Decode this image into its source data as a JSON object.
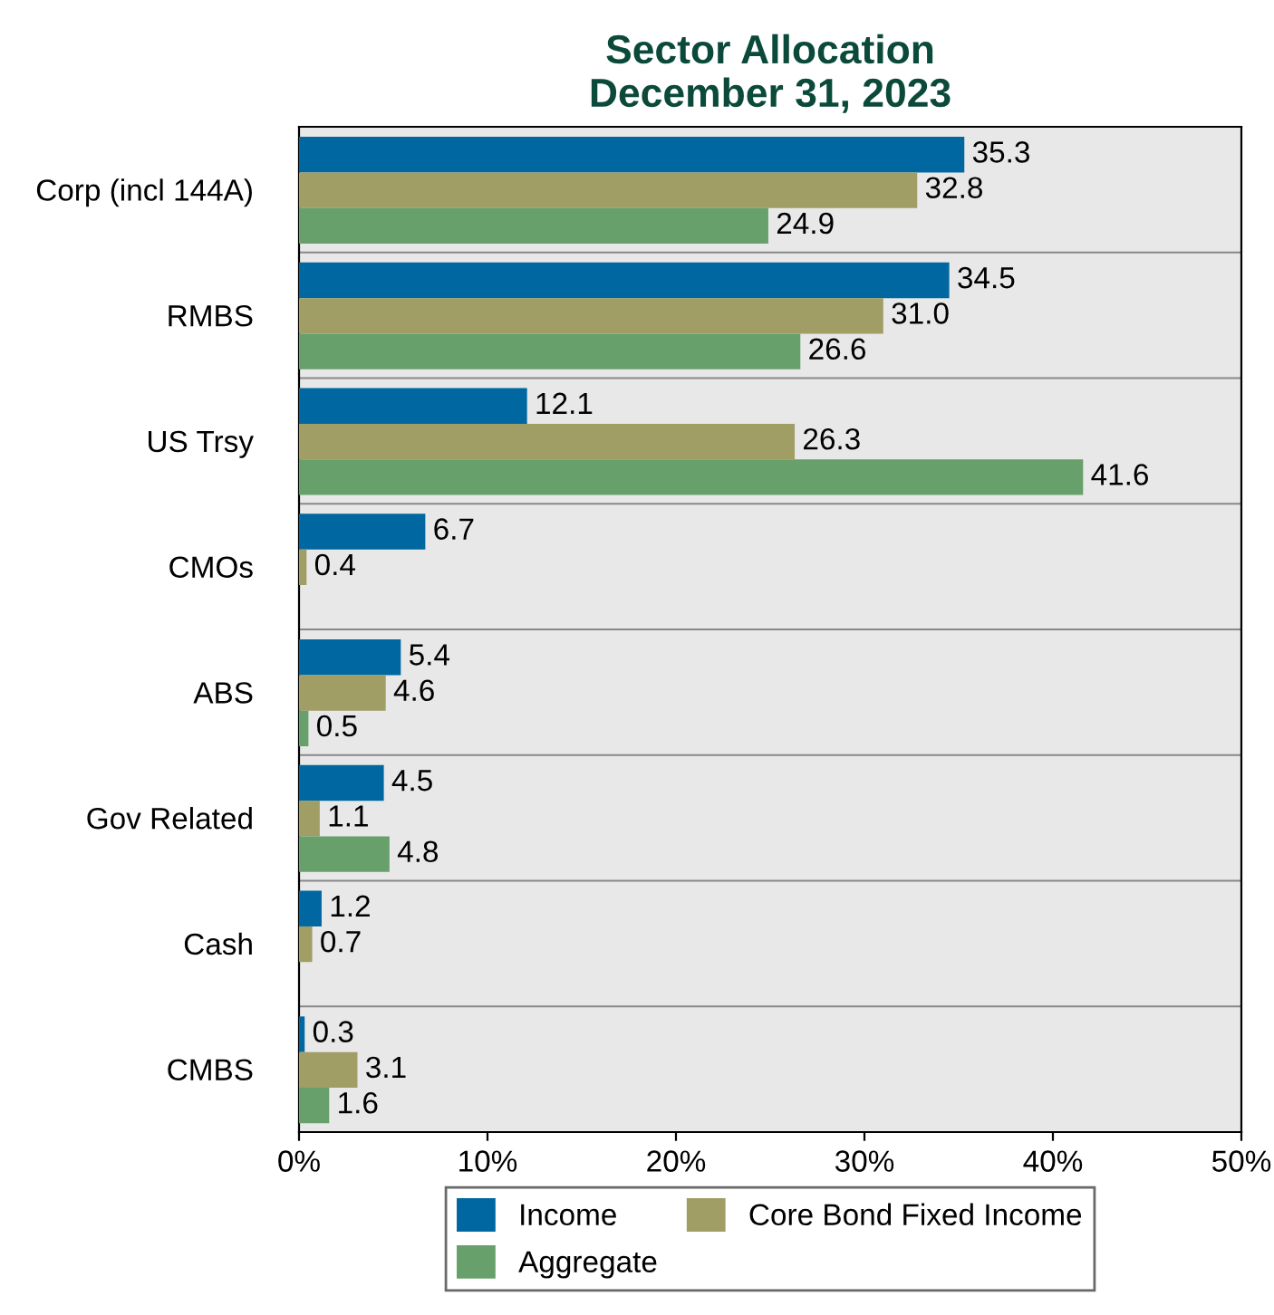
{
  "chart_data": {
    "type": "bar",
    "orientation": "horizontal",
    "title": "Sector Allocation\nDecember 31, 2023",
    "categories": [
      "Corp (incl 144A)",
      "RMBS",
      "US Trsy",
      "CMOs",
      "ABS",
      "Gov Related",
      "Cash",
      "CMBS"
    ],
    "series": [
      {
        "name": "Income",
        "color": "#0067a0",
        "values": [
          35.3,
          34.5,
          12.1,
          6.7,
          5.4,
          4.5,
          1.2,
          0.3
        ],
        "value_labels": [
          "35.3",
          "34.5",
          "12.1",
          "6.7",
          "5.4",
          "4.5",
          "1.2",
          "0.3"
        ]
      },
      {
        "name": "Core Bond Fixed Income",
        "color": "#a09d65",
        "values": [
          32.8,
          31.0,
          26.3,
          0.4,
          4.6,
          1.1,
          0.7,
          3.1
        ],
        "value_labels": [
          "32.8",
          "31.0",
          "26.3",
          "0.4",
          "4.6",
          "1.1",
          "0.7",
          "3.1"
        ]
      },
      {
        "name": "Aggregate",
        "color": "#67a06b",
        "values": [
          24.9,
          26.6,
          41.6,
          null,
          0.5,
          4.8,
          null,
          1.6
        ],
        "value_labels": [
          "24.9",
          "26.6",
          "41.6",
          null,
          "0.5",
          "4.8",
          null,
          "1.6"
        ]
      }
    ],
    "xlim": [
      0,
      50
    ],
    "xticks": [
      {
        "value": 0,
        "label": "0%"
      },
      {
        "value": 10,
        "label": "10%"
      },
      {
        "value": 20,
        "label": "20%"
      },
      {
        "value": 30,
        "label": "30%"
      },
      {
        "value": 40,
        "label": "40%"
      },
      {
        "value": 50,
        "label": "50%"
      }
    ],
    "grid": false,
    "legend": "bottom"
  }
}
